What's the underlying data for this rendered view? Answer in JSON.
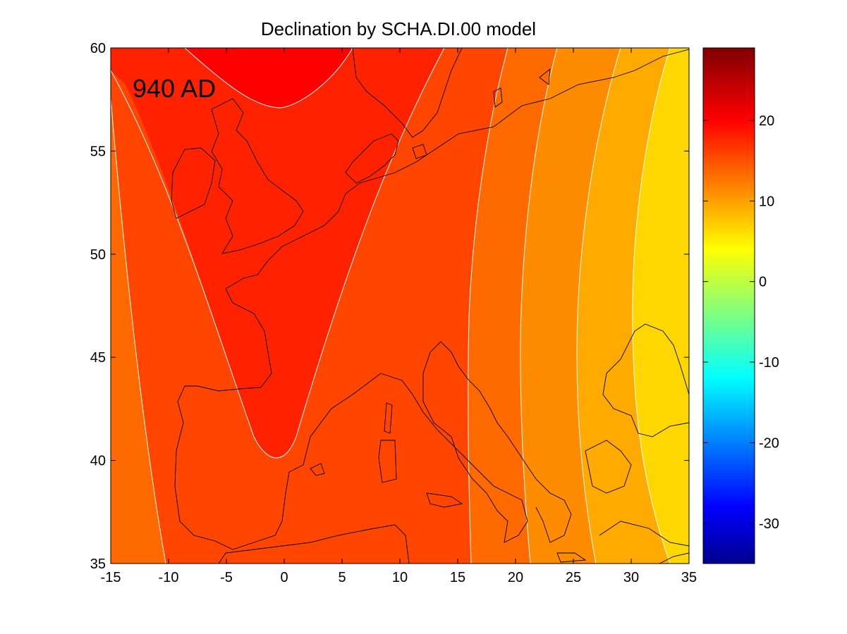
{
  "title": "Declination by SCHA.DI.00 model",
  "annotation": "940 AD",
  "x_ticks": [
    "-15",
    "-10",
    "-5",
    "0",
    "5",
    "10",
    "15",
    "20",
    "25",
    "30",
    "35"
  ],
  "y_ticks": [
    "35",
    "40",
    "45",
    "50",
    "55",
    "60"
  ],
  "colorbar_ticks": [
    "-30",
    "-20",
    "-10",
    "0",
    "10",
    "20"
  ],
  "colors": {
    "contour_line": "#ffffff",
    "coastline": "#000000",
    "background": "#ffffff"
  },
  "chart_data": {
    "type": "heatmap",
    "title": "Declination by SCHA.DI.00 model",
    "annotation": "940 AD",
    "xlim": [
      -15,
      35
    ],
    "ylim": [
      35,
      60
    ],
    "colorbar_range": [
      -35,
      29
    ],
    "colorbar_ticks": [
      -30,
      -20,
      -10,
      0,
      10,
      20
    ],
    "colormap": "jet",
    "grid": false,
    "contour_bands": [
      {
        "level": 5,
        "color": "#ffd700"
      },
      {
        "level": 8,
        "color": "#ffaa00"
      },
      {
        "level": 11,
        "color": "#ff8c00"
      },
      {
        "level": 14,
        "color": "#ff6a00"
      },
      {
        "level": 17,
        "color": "#ff4500"
      },
      {
        "level": 20,
        "color": "#ff2200"
      },
      {
        "level": 23,
        "color": "#ff0000"
      }
    ]
  }
}
